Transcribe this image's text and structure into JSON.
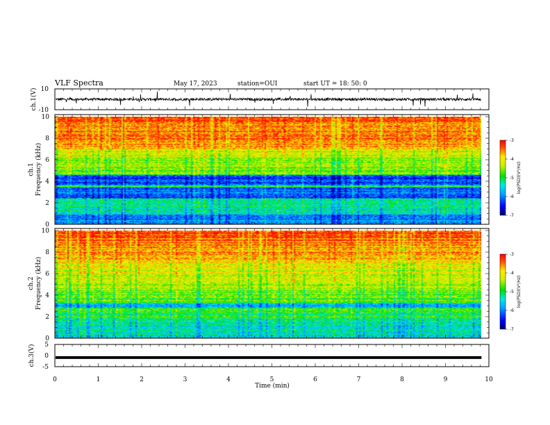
{
  "header": {
    "title": "VLF Spectra",
    "date": "May 17, 2023",
    "station": "station=OUI",
    "start": "start  UT =   18: 50: 0"
  },
  "chart_data": [
    {
      "type": "line",
      "name": "ch1-waveform",
      "ylabel": "ch.1(V)",
      "ylim": [
        -10,
        10
      ],
      "ytick_labels": [
        "10",
        "-10"
      ],
      "trace_level_V": 0,
      "trace_noise_V": 2.5
    },
    {
      "type": "heatmap",
      "name": "ch1-spectrogram",
      "ylabel": "ch.1\nFrequency (kHz)",
      "ylabel_lines": [
        "ch.1",
        "Frequency (kHz)"
      ],
      "ylim": [
        0,
        10
      ],
      "ytick_labels": [
        "0",
        "2",
        "4",
        "6",
        "8",
        "10"
      ],
      "colorbar": {
        "label": "log(PSD)(V²/Hz)",
        "range": [
          -7,
          -3
        ],
        "tick_labels": [
          "-3",
          "-4",
          "-5",
          "-6",
          "-7"
        ]
      }
    },
    {
      "type": "heatmap",
      "name": "ch2-spectrogram",
      "ylabel": "ch.2\nFrequency (kHz)",
      "ylabel_lines": [
        "ch.2",
        "Frequency (kHz)"
      ],
      "ylim": [
        0,
        10
      ],
      "ytick_labels": [
        "0",
        "2",
        "4",
        "6",
        "8",
        "10"
      ],
      "colorbar": {
        "label": "log(PSD)(V²/Hz)",
        "range": [
          -7,
          -3
        ],
        "tick_labels": [
          "-3",
          "-4",
          "-5",
          "-6",
          "-7"
        ]
      }
    },
    {
      "type": "line",
      "name": "ch3-waveform",
      "ylabel": "ch.3(V)",
      "ylim": [
        -5,
        5
      ],
      "ytick_labels": [
        "5",
        "0",
        "-5"
      ],
      "trace_level_V": -0.9
    }
  ],
  "xaxis": {
    "label": "Time (min)",
    "range": [
      0,
      10
    ],
    "tick_labels": [
      "0",
      "1",
      "2",
      "3",
      "4",
      "5",
      "6",
      "7",
      "8",
      "9",
      "10"
    ],
    "data_end_min": 9.83
  }
}
